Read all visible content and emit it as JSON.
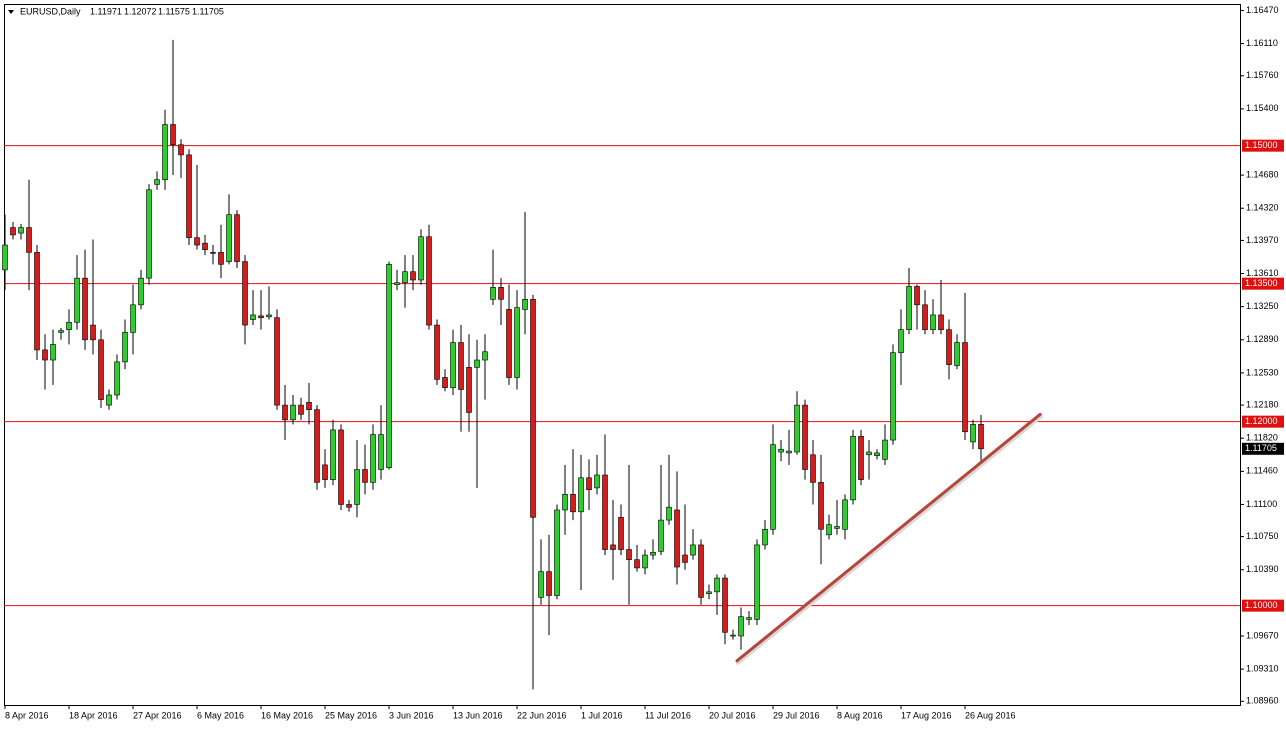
{
  "chart_data": {
    "type": "candlestick",
    "title": "EURUSD,Daily",
    "categories": [
      "8 Apr 2016",
      null,
      null,
      null,
      null,
      null,
      null,
      null,
      "18 Apr 2016",
      null,
      null,
      null,
      null,
      null,
      null,
      null,
      "27 Apr 2016",
      null,
      null,
      null,
      null,
      null,
      null,
      null,
      "6 May 2016",
      null,
      null,
      null,
      null,
      null,
      null,
      null,
      "16 May 2016",
      null,
      null,
      null,
      null,
      null,
      null,
      null,
      "25 May 2016",
      null,
      null,
      null,
      null,
      null,
      null,
      null,
      "3 Jun 2016",
      null,
      null,
      null,
      null,
      null,
      null,
      null,
      "13 Jun 2016",
      null,
      null,
      null,
      null,
      null,
      null,
      null,
      "22 Jun 2016",
      null,
      null,
      null,
      null,
      null,
      null,
      null,
      "1 Jul 2016",
      null,
      null,
      null,
      null,
      null,
      null,
      null,
      "11 Jul 2016",
      null,
      null,
      null,
      null,
      null,
      null,
      null,
      "20 Jul 2016",
      null,
      null,
      null,
      null,
      null,
      null,
      null,
      "29 Jul 2016",
      null,
      null,
      null,
      null,
      null,
      null,
      null,
      "8 Aug 2016",
      null,
      null,
      null,
      null,
      null,
      null,
      null,
      "17 Aug 2016",
      null,
      null,
      null,
      null,
      null,
      null,
      null,
      "26 Aug 2016",
      null,
      null
    ],
    "open": [
      1.1365,
      1.1411,
      1.1405,
      1.1411,
      1.1384,
      1.1278,
      1.1267,
      1.1297,
      1.13,
      1.1308,
      1.1356,
      1.1305,
      1.1289,
      1.1218,
      1.1229,
      1.1265,
      1.1297,
      1.1327,
      1.1356,
      1.1458,
      1.1463,
      1.1523,
      1.1501,
      1.149,
      1.14,
      1.1394,
      1.1384,
      1.1384,
      1.1374,
      1.1425,
      1.1374,
      1.1311,
      1.1315,
      1.1314,
      1.1313,
      1.1218,
      1.1202,
      1.1218,
      1.1221,
      1.1213,
      1.1153,
      1.1137,
      1.1191,
      1.111,
      1.111,
      1.1148,
      1.1134,
      1.1148,
      1.115,
      1.1349,
      1.1351,
      1.1363,
      1.1354,
      1.1401,
      1.1305,
      1.1248,
      1.1237,
      1.1286,
      1.1259,
      1.1259,
      1.1267,
      1.1333,
      1.1346,
      1.1322,
      1.1248,
      1.1322,
      1.1333,
      1.1009,
      1.1037,
      1.1011,
      1.1104,
      1.1121,
      1.1102,
      1.1139,
      1.1128,
      1.1142,
      1.1066,
      1.1096,
      1.1061,
      1.105,
      1.1041,
      1.1055,
      1.1059,
      1.1093,
      1.1104,
      1.1055,
      1.1055,
      1.1066,
      1.1013,
      1.1015,
      1.103,
      1.0967,
      1.0967,
      1.0985,
      1.0985,
      1.1066,
      1.1083,
      1.1167,
      1.1166,
      1.1167,
      1.1218,
      1.1164,
      1.1134,
      1.1077,
      1.1084,
      1.1083,
      1.1115,
      1.1184,
      1.1164,
      1.1163,
      1.1159,
      1.118,
      1.1275,
      1.13,
      1.1347,
      1.1327,
      1.13,
      1.1316,
      1.13,
      1.1261,
      1.1286,
      1.1178,
      1.11971
    ],
    "high": [
      1.1425,
      1.1417,
      1.1415,
      1.1463,
      1.1392,
      1.1295,
      1.13,
      1.1302,
      1.1322,
      1.1381,
      1.1387,
      1.1398,
      1.13,
      1.1235,
      1.1273,
      1.1311,
      1.1349,
      1.1365,
      1.1458,
      1.1472,
      1.1539,
      1.1615,
      1.1507,
      1.1496,
      1.1479,
      1.1403,
      1.1392,
      1.1414,
      1.1447,
      1.143,
      1.1381,
      1.1343,
      1.1343,
      1.1347,
      1.1322,
      1.124,
      1.1229,
      1.1226,
      1.1242,
      1.1218,
      1.117,
      1.1202,
      1.1197,
      1.1115,
      1.118,
      1.1175,
      1.1197,
      1.1218,
      1.1374,
      1.1365,
      1.1381,
      1.1381,
      1.1409,
      1.1414,
      1.1311,
      1.1257,
      1.13,
      1.1305,
      1.1295,
      1.1289,
      1.1295,
      1.1387,
      1.1356,
      1.1349,
      1.1343,
      1.1428,
      1.1338,
      1.1072,
      1.1077,
      1.111,
      1.1153,
      1.117,
      1.1164,
      1.1159,
      1.1164,
      1.1186,
      1.1115,
      1.111,
      1.1153,
      1.1066,
      1.1061,
      1.1072,
      1.1153,
      1.1164,
      1.1146,
      1.111,
      1.1083,
      1.1072,
      1.1023,
      1.1034,
      1.1034,
      1.0974,
      1.0998,
      1.0994,
      1.1072,
      1.1093,
      1.1197,
      1.118,
      1.1191,
      1.1233,
      1.1224,
      1.118,
      1.1164,
      1.1099,
      1.1115,
      1.1121,
      1.1191,
      1.1191,
      1.118,
      1.117,
      1.1197,
      1.1284,
      1.1322,
      1.1367,
      1.1349,
      1.1343,
      1.1333,
      1.1354,
      1.1311,
      1.1295,
      1.134,
      1.1202,
      1.12072
    ],
    "low": [
      1.1343,
      1.1398,
      1.1398,
      1.1343,
      1.1267,
      1.1235,
      1.124,
      1.1289,
      1.1284,
      1.13,
      1.1278,
      1.1273,
      1.1215,
      1.1213,
      1.1224,
      1.1257,
      1.1273,
      1.1322,
      1.1349,
      1.1452,
      1.1452,
      1.1468,
      1.1465,
      1.1392,
      1.1387,
      1.1381,
      1.1371,
      1.1356,
      1.1371,
      1.1367,
      1.1284,
      1.1305,
      1.13,
      1.1311,
      1.1213,
      1.118,
      1.1197,
      1.1202,
      1.1197,
      1.1126,
      1.1128,
      1.1131,
      1.1104,
      1.1102,
      1.1096,
      1.1121,
      1.1126,
      1.1137,
      1.1148,
      1.1343,
      1.1324,
      1.1343,
      1.1349,
      1.13,
      1.124,
      1.1233,
      1.1229,
      1.1189,
      1.1189,
      1.1128,
      1.1224,
      1.1327,
      1.1305,
      1.124,
      1.1235,
      1.1295,
      1.0909,
      1.1001,
      1.0968,
      1.1007,
      1.1077,
      1.1093,
      1.1017,
      1.1104,
      1.1121,
      1.1055,
      1.1028,
      1.1055,
      1.1001,
      1.1037,
      1.1034,
      1.105,
      1.1055,
      1.1088,
      1.1023,
      1.1039,
      1.105,
      1.1001,
      1.1007,
      1.099,
      1.0958,
      1.0963,
      1.0952,
      1.0979,
      1.0979,
      1.1061,
      1.1077,
      1.1157,
      1.1153,
      1.1164,
      1.1137,
      1.111,
      1.1045,
      1.1072,
      1.1077,
      1.1072,
      1.111,
      1.1131,
      1.1137,
      1.1159,
      1.1153,
      1.1175,
      1.124,
      1.1295,
      1.13,
      1.1295,
      1.1295,
      1.1295,
      1.1246,
      1.1257,
      1.118,
      1.117,
      1.11575
    ],
    "close": [
      1.1392,
      1.1403,
      1.1411,
      1.1384,
      1.1278,
      1.1267,
      1.1284,
      1.1299,
      1.1308,
      1.1356,
      1.1289,
      1.1289,
      1.1224,
      1.1229,
      1.1265,
      1.1297,
      1.1327,
      1.1356,
      1.1452,
      1.1463,
      1.1523,
      1.1501,
      1.149,
      1.14,
      1.1392,
      1.1387,
      1.1383,
      1.1371,
      1.1425,
      1.1374,
      1.1305,
      1.1316,
      1.1313,
      1.1316,
      1.1218,
      1.1202,
      1.1218,
      1.1208,
      1.1213,
      1.1134,
      1.1137,
      1.1191,
      1.111,
      1.1107,
      1.1148,
      1.1134,
      1.1186,
      1.1186,
      1.1371,
      1.1351,
      1.1363,
      1.1354,
      1.1401,
      1.1305,
      1.1246,
      1.1237,
      1.1286,
      1.1235,
      1.121,
      1.1267,
      1.1276,
      1.1346,
      1.1333,
      1.1248,
      1.1324,
      1.1333,
      1.1096,
      1.1037,
      1.1011,
      1.1104,
      1.1121,
      1.1102,
      1.1139,
      1.1126,
      1.1142,
      1.1061,
      1.1061,
      1.1061,
      1.105,
      1.1041,
      1.1055,
      1.1058,
      1.1093,
      1.1107,
      1.1042,
      1.1047,
      1.1066,
      1.1009,
      1.1015,
      1.103,
      1.0971,
      1.0968,
      1.0988,
      1.0987,
      1.1066,
      1.1083,
      1.1175,
      1.117,
      1.1168,
      1.1218,
      1.1148,
      1.1134,
      1.1083,
      1.1088,
      1.1086,
      1.1115,
      1.1184,
      1.1137,
      1.1167,
      1.1166,
      1.118,
      1.1275,
      1.13,
      1.1347,
      1.1327,
      1.13,
      1.1316,
      1.13,
      1.1262,
      1.1286,
      1.1189,
      1.1197,
      1.11705
    ],
    "up_color": "#2ecc2e",
    "down_color": "#d41e1e",
    "ylim": [
      1.0892,
      1.1654
    ],
    "yticks": [
      {
        "value": 1.1647,
        "label": "1.16470"
      },
      {
        "value": 1.1611,
        "label": "1.16110"
      },
      {
        "value": 1.1576,
        "label": "1.15760"
      },
      {
        "value": 1.154,
        "label": "1.15400"
      },
      {
        "value": 1.1468,
        "label": "1.14680"
      },
      {
        "value": 1.1432,
        "label": "1.14320"
      },
      {
        "value": 1.1397,
        "label": "1.13970"
      },
      {
        "value": 1.1361,
        "label": "1.13610"
      },
      {
        "value": 1.1325,
        "label": "1.13250"
      },
      {
        "value": 1.1289,
        "label": "1.12890"
      },
      {
        "value": 1.1253,
        "label": "1.12530"
      },
      {
        "value": 1.1218,
        "label": "1.12180"
      },
      {
        "value": 1.1182,
        "label": "1.11820"
      },
      {
        "value": 1.1146,
        "label": "1.11460"
      },
      {
        "value": 1.111,
        "label": "1.11100"
      },
      {
        "value": 1.1075,
        "label": "1.10750"
      },
      {
        "value": 1.1039,
        "label": "1.10390"
      },
      {
        "value": 1.0967,
        "label": "1.09670"
      },
      {
        "value": 1.0931,
        "label": "1.09310"
      },
      {
        "value": 1.0896,
        "label": "1.08960"
      }
    ],
    "levels": [
      {
        "value": 1.15,
        "label": "1.15000"
      },
      {
        "value": 1.135,
        "label": "1.13500"
      },
      {
        "value": 1.12,
        "label": "1.12000"
      },
      {
        "value": 1.1,
        "label": "1.10000"
      }
    ],
    "level_color": "#e01010",
    "trendline": {
      "x": [
        91.5,
        129.4
      ],
      "y": [
        1.094,
        1.1208
      ],
      "color": "#b5473a"
    },
    "grid": false
  }
}
